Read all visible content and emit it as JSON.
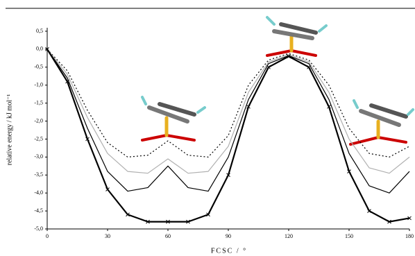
{
  "chart_data": {
    "type": "line",
    "y_label": "relative energy / kJ mol⁻¹",
    "x_label": "FCSC / °",
    "xlim": [
      0,
      180
    ],
    "xticks": [
      0,
      30,
      60,
      90,
      120,
      150,
      180
    ],
    "ylim": [
      -5,
      0.5
    ],
    "yticks": [
      {
        "value": 0.5,
        "label": "0,5"
      },
      {
        "value": 0,
        "label": "0,0"
      },
      {
        "value": -0.5,
        "label": "-0,5"
      },
      {
        "value": -1,
        "label": "-1,0"
      },
      {
        "value": -1.5,
        "label": "-1,5"
      },
      {
        "value": -2,
        "label": "-2,0"
      },
      {
        "value": -2.5,
        "label": "-2,5"
      },
      {
        "value": -3,
        "label": "-3,0"
      },
      {
        "value": -3.5,
        "label": "-3,5"
      },
      {
        "value": -4,
        "label": "-4,0"
      },
      {
        "value": -4.5,
        "label": "-4,5"
      },
      {
        "value": -5,
        "label": "-5,0"
      }
    ],
    "x": [
      0,
      10,
      20,
      30,
      40,
      50,
      60,
      70,
      80,
      90,
      100,
      110,
      120,
      130,
      140,
      150,
      160,
      170,
      180
    ],
    "series": [
      {
        "color": "#000000",
        "style": "dotted",
        "width": 1.2,
        "values": [
          0,
          -0.6,
          -1.7,
          -2.6,
          -3.0,
          -2.95,
          -2.55,
          -2.95,
          -3.0,
          -2.4,
          -1.0,
          -0.3,
          -0.12,
          -0.3,
          -1.0,
          -2.2,
          -2.9,
          -3.0,
          -2.7
        ]
      },
      {
        "color": "#b0b0b0",
        "style": "solid",
        "width": 1.2,
        "values": [
          0,
          -0.7,
          -1.9,
          -2.9,
          -3.4,
          -3.45,
          -3.05,
          -3.45,
          -3.4,
          -2.7,
          -1.2,
          -0.35,
          -0.15,
          -0.35,
          -1.2,
          -2.5,
          -3.3,
          -3.45,
          -3.0
        ]
      },
      {
        "color": "#000000",
        "style": "solid",
        "width": 1.2,
        "values": [
          0,
          -0.8,
          -2.2,
          -3.4,
          -3.95,
          -3.85,
          -3.25,
          -3.85,
          -3.95,
          -3.0,
          -1.4,
          -0.4,
          -0.18,
          -0.4,
          -1.4,
          -2.9,
          -3.8,
          -4.0,
          -3.4
        ]
      },
      {
        "color": "#000000",
        "style": "solid",
        "width": 2.2,
        "marker": "x",
        "values": [
          0,
          -0.9,
          -2.5,
          -3.9,
          -4.6,
          -4.8,
          -4.8,
          -4.8,
          -4.6,
          -3.5,
          -1.6,
          -0.5,
          -0.2,
          -0.5,
          -1.6,
          -3.4,
          -4.5,
          -4.8,
          -4.7
        ]
      }
    ]
  }
}
